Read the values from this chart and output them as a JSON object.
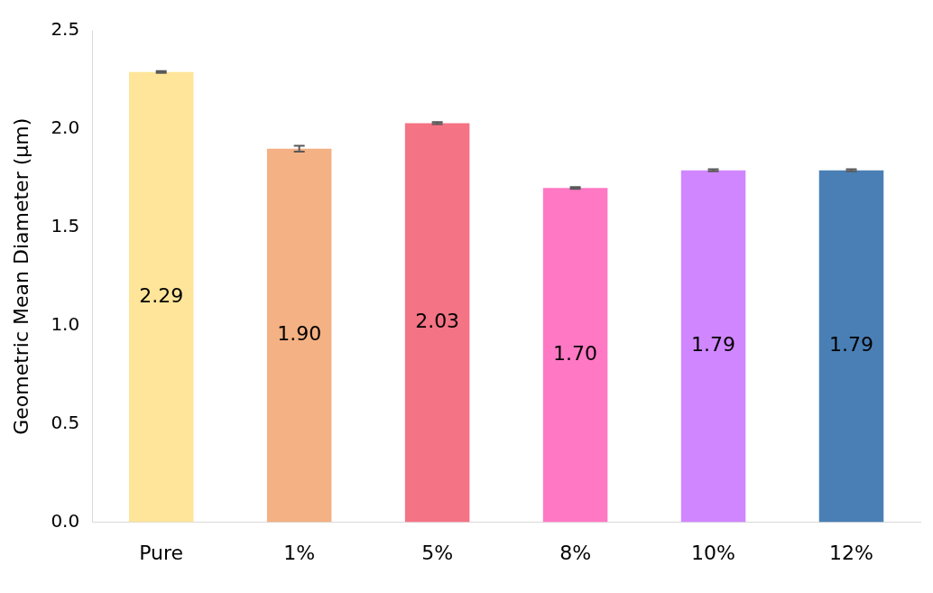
{
  "chart_data": {
    "type": "bar",
    "ylabel": "Geometric Mean Diameter (μm)",
    "categories": [
      "Pure",
      "1%",
      "5%",
      "8%",
      "10%",
      "12%"
    ],
    "values": [
      2.29,
      1.9,
      2.03,
      1.7,
      1.79,
      1.79
    ],
    "value_labels": [
      "2.29",
      "1.90",
      "2.03",
      "1.70",
      "1.79",
      "1.79"
    ],
    "errors": [
      0.005,
      0.015,
      0.005,
      0.005,
      0.005,
      0.005
    ],
    "colors": [
      "#fee599",
      "#f4b183",
      "#f47384",
      "#ff78c4",
      "#d086ff",
      "#4a7fb5"
    ],
    "ylim": [
      0,
      2.5
    ],
    "yticks": [
      {
        "value": 0,
        "label": "0.0"
      },
      {
        "value": 0.5,
        "label": "0.5"
      },
      {
        "value": 1,
        "label": "1.0"
      },
      {
        "value": 1.5,
        "label": "1.5"
      },
      {
        "value": 2,
        "label": "2.0"
      },
      {
        "value": 2.5,
        "label": "2.5"
      }
    ],
    "grid": false,
    "legend": false
  }
}
